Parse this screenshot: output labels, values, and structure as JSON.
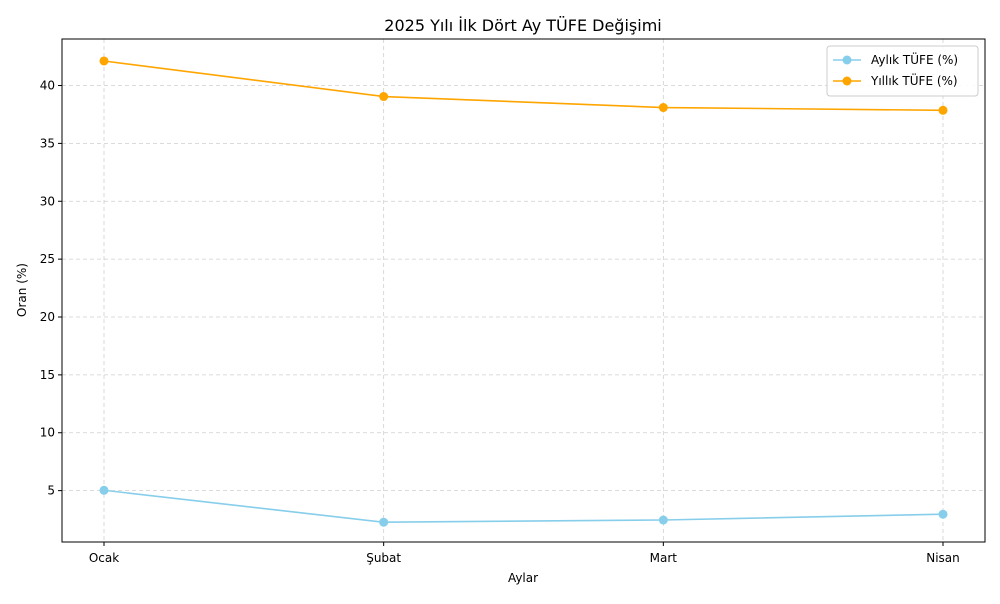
{
  "chart_data": {
    "type": "line",
    "title": "2025 Yılı İlk Dört Ay TÜFE Değişimi",
    "xlabel": "Aylar",
    "ylabel": "Oran (%)",
    "categories": [
      "Ocak",
      "Şubat",
      "Mart",
      "Nisan"
    ],
    "ylim": [
      0.56,
      44.02
    ],
    "yticks": [
      5,
      10,
      15,
      20,
      25,
      30,
      35,
      40
    ],
    "grid": true,
    "legend_position": "top-right",
    "series": [
      {
        "name": "Aylık TÜFE (%)",
        "values": [
          5.03,
          2.27,
          2.46,
          2.96
        ],
        "color": "#87ceeb"
      },
      {
        "name": "Yıllık TÜFE (%)",
        "values": [
          42.12,
          39.05,
          38.1,
          37.86
        ],
        "color": "#ffa500"
      }
    ]
  }
}
